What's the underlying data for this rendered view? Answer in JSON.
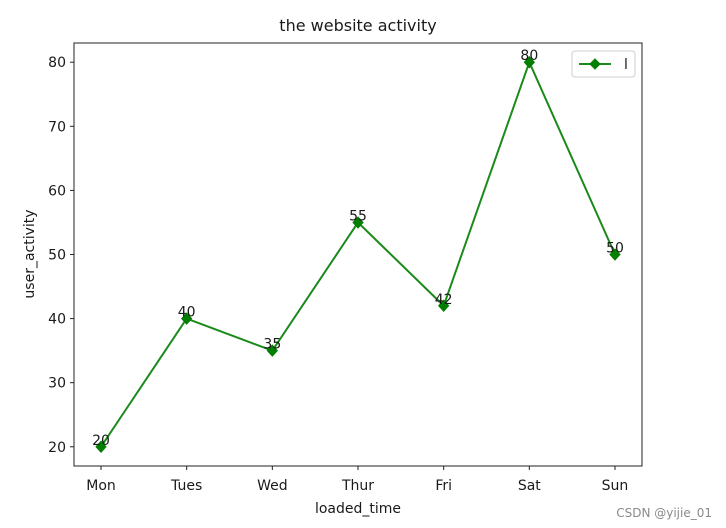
{
  "chart_data": {
    "type": "line",
    "title": "the website activity",
    "xlabel": "loaded_time",
    "ylabel": "user_activity",
    "categories": [
      "Mon",
      "Tues",
      "Wed",
      "Thur",
      "Fri",
      "Sat",
      "Sun"
    ],
    "series": [
      {
        "name": "l",
        "values": [
          20,
          40,
          35,
          55,
          42,
          80,
          50
        ],
        "color": "#1a8a1a",
        "marker_color": "#007f00",
        "marker": "diamond"
      }
    ],
    "data_labels": [
      "20",
      "40",
      "35",
      "55",
      "42",
      "80",
      "50"
    ],
    "yticks": [
      20,
      30,
      40,
      50,
      60,
      70,
      80
    ],
    "ylim": [
      17,
      83
    ],
    "grid": false,
    "legend_position": "top-right"
  },
  "watermark": "CSDN @yijie_01"
}
